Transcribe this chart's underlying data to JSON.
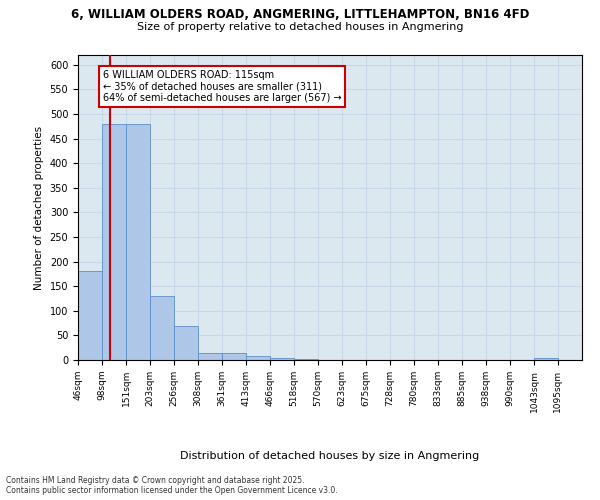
{
  "title1": "6, WILLIAM OLDERS ROAD, ANGMERING, LITTLEHAMPTON, BN16 4FD",
  "title2": "Size of property relative to detached houses in Angmering",
  "xlabel": "Distribution of detached houses by size in Angmering",
  "ylabel": "Number of detached properties",
  "bin_labels": [
    "46sqm",
    "98sqm",
    "151sqm",
    "203sqm",
    "256sqm",
    "308sqm",
    "361sqm",
    "413sqm",
    "466sqm",
    "518sqm",
    "570sqm",
    "623sqm",
    "675sqm",
    "728sqm",
    "780sqm",
    "833sqm",
    "885sqm",
    "938sqm",
    "990sqm",
    "1043sqm",
    "1095sqm"
  ],
  "bar_values": [
    180,
    480,
    480,
    130,
    70,
    15,
    15,
    8,
    5,
    3,
    0,
    0,
    0,
    0,
    0,
    0,
    0,
    0,
    0,
    4,
    0
  ],
  "bar_color": "#aec6e8",
  "bar_edge_color": "#5b8fc9",
  "grid_color": "#c8d8e8",
  "background_color": "#dce8f0",
  "red_line_x": 115,
  "annotation_text": "6 WILLIAM OLDERS ROAD: 115sqm\n← 35% of detached houses are smaller (311)\n64% of semi-detached houses are larger (567) →",
  "annotation_box_color": "#ffffff",
  "annotation_box_edge": "#cc0000",
  "footnote": "Contains HM Land Registry data © Crown copyright and database right 2025.\nContains public sector information licensed under the Open Government Licence v3.0.",
  "ylim": [
    0,
    620
  ],
  "yticks": [
    0,
    50,
    100,
    150,
    200,
    250,
    300,
    350,
    400,
    450,
    500,
    550,
    600
  ],
  "bin_edges": [
    46,
    98,
    151,
    203,
    256,
    308,
    361,
    413,
    466,
    518,
    570,
    623,
    675,
    728,
    780,
    833,
    885,
    938,
    990,
    1043,
    1095,
    1148
  ]
}
